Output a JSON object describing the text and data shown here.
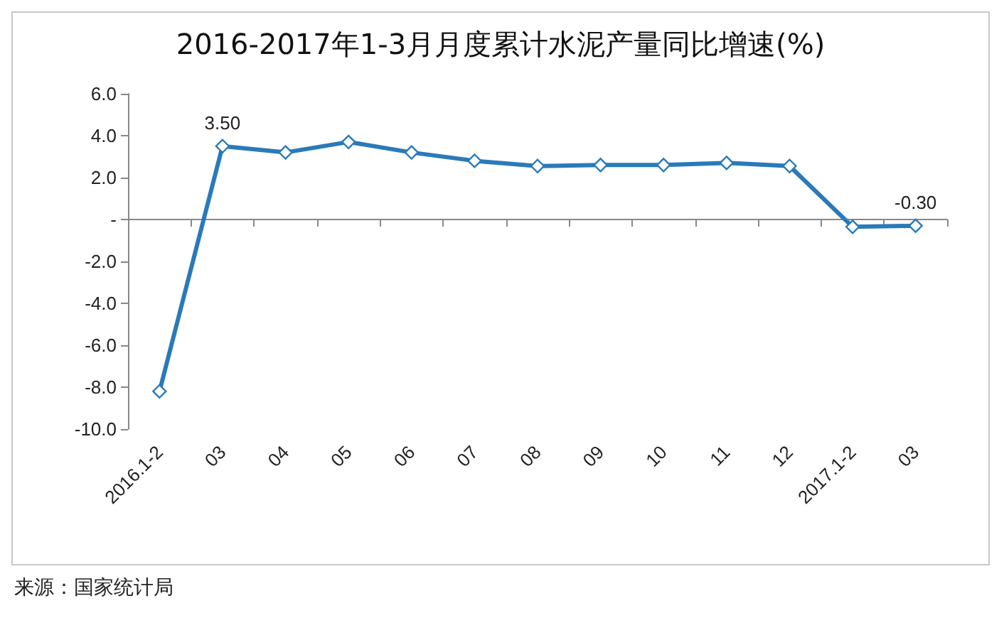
{
  "chart_data": {
    "type": "line",
    "title": "2016-2017年1-3月月度累计水泥产量同比增速(%)",
    "categories": [
      "2016.1-2",
      "03",
      "04",
      "05",
      "06",
      "07",
      "08",
      "09",
      "10",
      "11",
      "12",
      "2017.1-2",
      "03"
    ],
    "series": [
      {
        "color": "#2a7ab9",
        "values": [
          -8.2,
          3.5,
          3.2,
          3.7,
          3.2,
          2.8,
          2.55,
          2.6,
          2.6,
          2.7,
          2.55,
          -0.35,
          -0.3
        ],
        "value_labels": [
          null,
          "3.50",
          null,
          null,
          null,
          null,
          null,
          null,
          null,
          null,
          null,
          null,
          "-0.30"
        ]
      }
    ],
    "ylim": [
      -10,
      6
    ],
    "yticks": [
      {
        "value": -10,
        "label": "-10.0"
      },
      {
        "value": -8,
        "label": "-8.0"
      },
      {
        "value": -6,
        "label": "-6.0"
      },
      {
        "value": -4,
        "label": "-4.0"
      },
      {
        "value": -2,
        "label": "-2.0"
      },
      {
        "value": 0,
        "label": "-"
      },
      {
        "value": 2,
        "label": "2.0"
      },
      {
        "value": 4,
        "label": "4.0"
      },
      {
        "value": 6,
        "label": "6.0"
      }
    ],
    "marker": "diamond",
    "line_style": "solid",
    "annotations": [
      "来源：国家统计局"
    ]
  }
}
